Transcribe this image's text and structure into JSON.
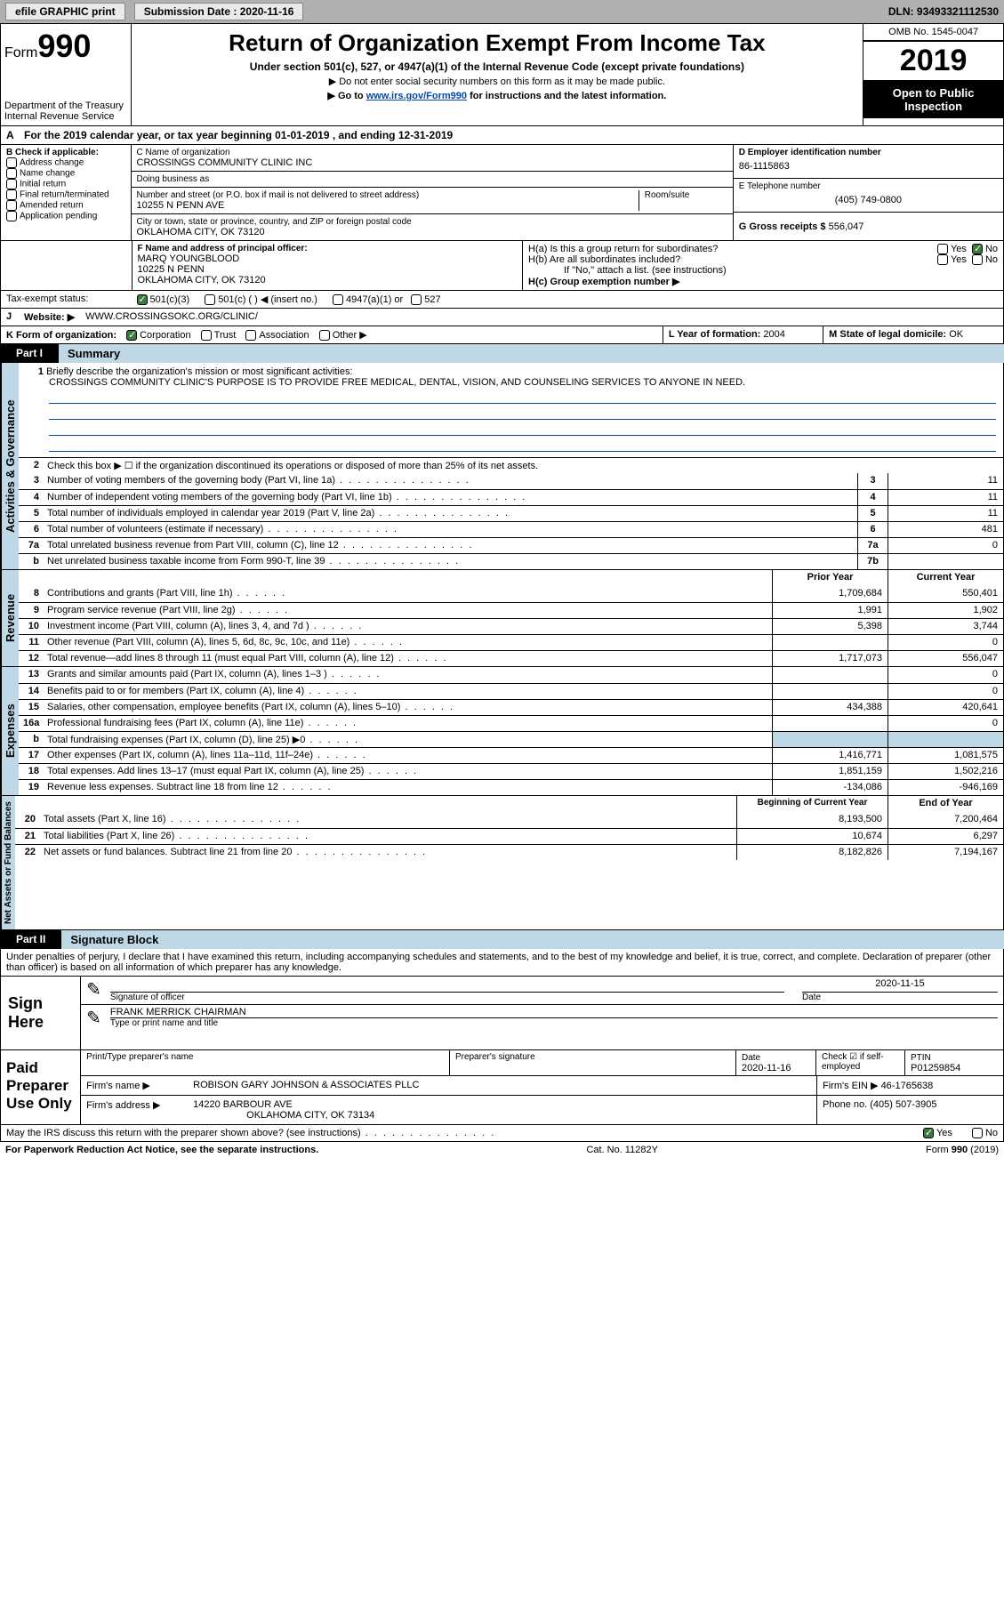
{
  "topbar": {
    "efile_label": "efile GRAPHIC print",
    "submission_label": "Submission Date :",
    "submission_date": "2020-11-16",
    "dln_label": "DLN:",
    "dln": "93493321112530"
  },
  "header": {
    "form_prefix": "Form",
    "form_num": "990",
    "dept": "Department of the Treasury\nInternal Revenue Service",
    "title": "Return of Organization Exempt From Income Tax",
    "subtitle": "Under section 501(c), 527, or 4947(a)(1) of the Internal Revenue Code (except private foundations)",
    "line1": "▶ Do not enter social security numbers on this form as it may be made public.",
    "line2_pre": "▶ Go to ",
    "line2_link": "www.irs.gov/Form990",
    "line2_post": " for instructions and the latest information.",
    "omb": "OMB No. 1545-0047",
    "year": "2019",
    "open_public": "Open to Public Inspection"
  },
  "period": {
    "text": "For the 2019 calendar year, or tax year beginning 01-01-2019   , and ending 12-31-2019",
    "prefix": "A"
  },
  "sectionB": {
    "header": "B Check if applicable:",
    "opts": [
      "Address change",
      "Name change",
      "Initial return",
      "Final return/terminated",
      "Amended return",
      "Application pending"
    ]
  },
  "sectionC": {
    "name_label": "C Name of organization",
    "name": "CROSSINGS COMMUNITY CLINIC INC",
    "dba_label": "Doing business as",
    "addr_label": "Number and street (or P.O. box if mail is not delivered to street address)",
    "room_label": "Room/suite",
    "addr": "10255 N PENN AVE",
    "city_label": "City or town, state or province, country, and ZIP or foreign postal code",
    "city": "OKLAHOMA CITY, OK   73120"
  },
  "sectionD": {
    "label": "D Employer identification number",
    "value": "86-1115863"
  },
  "sectionE": {
    "label": "E Telephone number",
    "value": "(405) 749-0800"
  },
  "sectionG": {
    "label": "G Gross receipts $",
    "value": "556,047"
  },
  "sectionF": {
    "label": "F  Name and address of principal officer:",
    "name": "MARQ YOUNGBLOOD",
    "addr1": "10225 N PENN",
    "addr2": "OKLAHOMA CITY, OK  73120"
  },
  "sectionH": {
    "a": "H(a)  Is this a group return for subordinates?",
    "b": "H(b)  Are all subordinates included?",
    "b_note": "If \"No,\" attach a list. (see instructions)",
    "c": "H(c)  Group exemption number ▶",
    "yes": "Yes",
    "no": "No"
  },
  "taxExempt": {
    "label": "Tax-exempt status:",
    "o1": "501(c)(3)",
    "o2": "501(c) (   ) ◀ (insert no.)",
    "o3": "4947(a)(1) or",
    "o4": "527"
  },
  "sectionJ": {
    "label": "J",
    "text": "Website: ▶",
    "value": "WWW.CROSSINGSOKC.ORG/CLINIC/"
  },
  "sectionK": {
    "label": "K Form of organization:",
    "opts": [
      "Corporation",
      "Trust",
      "Association",
      "Other ▶"
    ]
  },
  "sectionL": {
    "label": "L Year of formation:",
    "value": "2004"
  },
  "sectionM": {
    "label": "M State of legal domicile:",
    "value": "OK"
  },
  "part1": {
    "tab": "Part I",
    "title": "Summary",
    "q1_label": "1",
    "q1": "Briefly describe the organization's mission or most significant activities:",
    "mission": "CROSSINGS COMMUNITY CLINIC'S PURPOSE IS TO PROVIDE FREE MEDICAL, DENTAL, VISION, AND COUNSELING SERVICES TO ANYONE IN NEED.",
    "q2": "Check this box ▶ ☐  if the organization discontinued its operations or disposed of more than 25% of its net assets."
  },
  "governance_label": "Activities & Governance",
  "revenue_label": "Revenue",
  "expenses_label": "Expenses",
  "netassets_label": "Net Assets or Fund Balances",
  "gov_lines": [
    {
      "n": "3",
      "t": "Number of voting members of the governing body (Part VI, line 1a)",
      "box": "3",
      "v": "11"
    },
    {
      "n": "4",
      "t": "Number of independent voting members of the governing body (Part VI, line 1b)",
      "box": "4",
      "v": "11"
    },
    {
      "n": "5",
      "t": "Total number of individuals employed in calendar year 2019 (Part V, line 2a)",
      "box": "5",
      "v": "11"
    },
    {
      "n": "6",
      "t": "Total number of volunteers (estimate if necessary)",
      "box": "6",
      "v": "481"
    },
    {
      "n": "7a",
      "t": "Total unrelated business revenue from Part VIII, column (C), line 12",
      "box": "7a",
      "v": "0"
    },
    {
      "n": "b",
      "t": "Net unrelated business taxable income from Form 990-T, line 39",
      "box": "7b",
      "v": ""
    }
  ],
  "two_col_hdr": {
    "py": "Prior Year",
    "cy": "Current Year"
  },
  "rev_lines": [
    {
      "n": "8",
      "t": "Contributions and grants (Part VIII, line 1h)",
      "py": "1,709,684",
      "cy": "550,401"
    },
    {
      "n": "9",
      "t": "Program service revenue (Part VIII, line 2g)",
      "py": "1,991",
      "cy": "1,902"
    },
    {
      "n": "10",
      "t": "Investment income (Part VIII, column (A), lines 3, 4, and 7d )",
      "py": "5,398",
      "cy": "3,744"
    },
    {
      "n": "11",
      "t": "Other revenue (Part VIII, column (A), lines 5, 6d, 8c, 9c, 10c, and 11e)",
      "py": "",
      "cy": "0"
    },
    {
      "n": "12",
      "t": "Total revenue—add lines 8 through 11 (must equal Part VIII, column (A), line 12)",
      "py": "1,717,073",
      "cy": "556,047"
    }
  ],
  "exp_lines": [
    {
      "n": "13",
      "t": "Grants and similar amounts paid (Part IX, column (A), lines 1–3 )",
      "py": "",
      "cy": "0"
    },
    {
      "n": "14",
      "t": "Benefits paid to or for members (Part IX, column (A), line 4)",
      "py": "",
      "cy": "0"
    },
    {
      "n": "15",
      "t": "Salaries, other compensation, employee benefits (Part IX, column (A), lines 5–10)",
      "py": "434,388",
      "cy": "420,641"
    },
    {
      "n": "16a",
      "t": "Professional fundraising fees (Part IX, column (A), line 11e)",
      "py": "",
      "cy": "0"
    },
    {
      "n": "b",
      "t": "Total fundraising expenses (Part IX, column (D), line 25) ▶0",
      "py": "",
      "cy": "",
      "shaded": true
    },
    {
      "n": "17",
      "t": "Other expenses (Part IX, column (A), lines 11a–11d, 11f–24e)",
      "py": "1,416,771",
      "cy": "1,081,575"
    },
    {
      "n": "18",
      "t": "Total expenses. Add lines 13–17 (must equal Part IX, column (A), line 25)",
      "py": "1,851,159",
      "cy": "1,502,216"
    },
    {
      "n": "19",
      "t": "Revenue less expenses. Subtract line 18 from line 12",
      "py": "-134,086",
      "cy": "-946,169"
    }
  ],
  "na_hdr": {
    "b": "Beginning of Current Year",
    "e": "End of Year"
  },
  "na_lines": [
    {
      "n": "20",
      "t": "Total assets (Part X, line 16)",
      "b": "8,193,500",
      "e": "7,200,464"
    },
    {
      "n": "21",
      "t": "Total liabilities (Part X, line 26)",
      "b": "10,674",
      "e": "6,297"
    },
    {
      "n": "22",
      "t": "Net assets or fund balances. Subtract line 21 from line 20",
      "b": "8,182,826",
      "e": "7,194,167"
    }
  ],
  "part2": {
    "tab": "Part II",
    "title": "Signature Block",
    "decl": "Under penalties of perjury, I declare that I have examined this return, including accompanying schedules and statements, and to the best of my knowledge and belief, it is true, correct, and complete. Declaration of preparer (other than officer) is based on all information of which preparer has any knowledge."
  },
  "sign": {
    "here": "Sign Here",
    "sig_officer": "Signature of officer",
    "date": "Date",
    "date_val": "2020-11-15",
    "name": "FRANK MERRICK CHAIRMAN",
    "name_label": "Type or print name and title"
  },
  "paid": {
    "title": "Paid Preparer Use Only",
    "h1": "Print/Type preparer's name",
    "h2": "Preparer's signature",
    "h3": "Date",
    "h3v": "2020-11-16",
    "h4": "Check ☑ if self-employed",
    "h5l": "PTIN",
    "h5v": "P01259854",
    "firm_l": "Firm's name    ▶",
    "firm_v": "ROBISON GARY JOHNSON & ASSOCIATES PLLC",
    "ein_l": "Firm's EIN ▶",
    "ein_v": "46-1765638",
    "addr_l": "Firm's address ▶",
    "addr_v1": "14220 BARBOUR AVE",
    "addr_v2": "OKLAHOMA CITY, OK  73134",
    "phone_l": "Phone no.",
    "phone_v": "(405) 507-3905"
  },
  "discuss": {
    "q": "May the IRS discuss this return with the preparer shown above? (see instructions)",
    "yes": "Yes",
    "no": "No"
  },
  "footer": {
    "l": "For Paperwork Reduction Act Notice, see the separate instructions.",
    "m": "Cat. No. 11282Y",
    "r": "Form 990 (2019)"
  }
}
